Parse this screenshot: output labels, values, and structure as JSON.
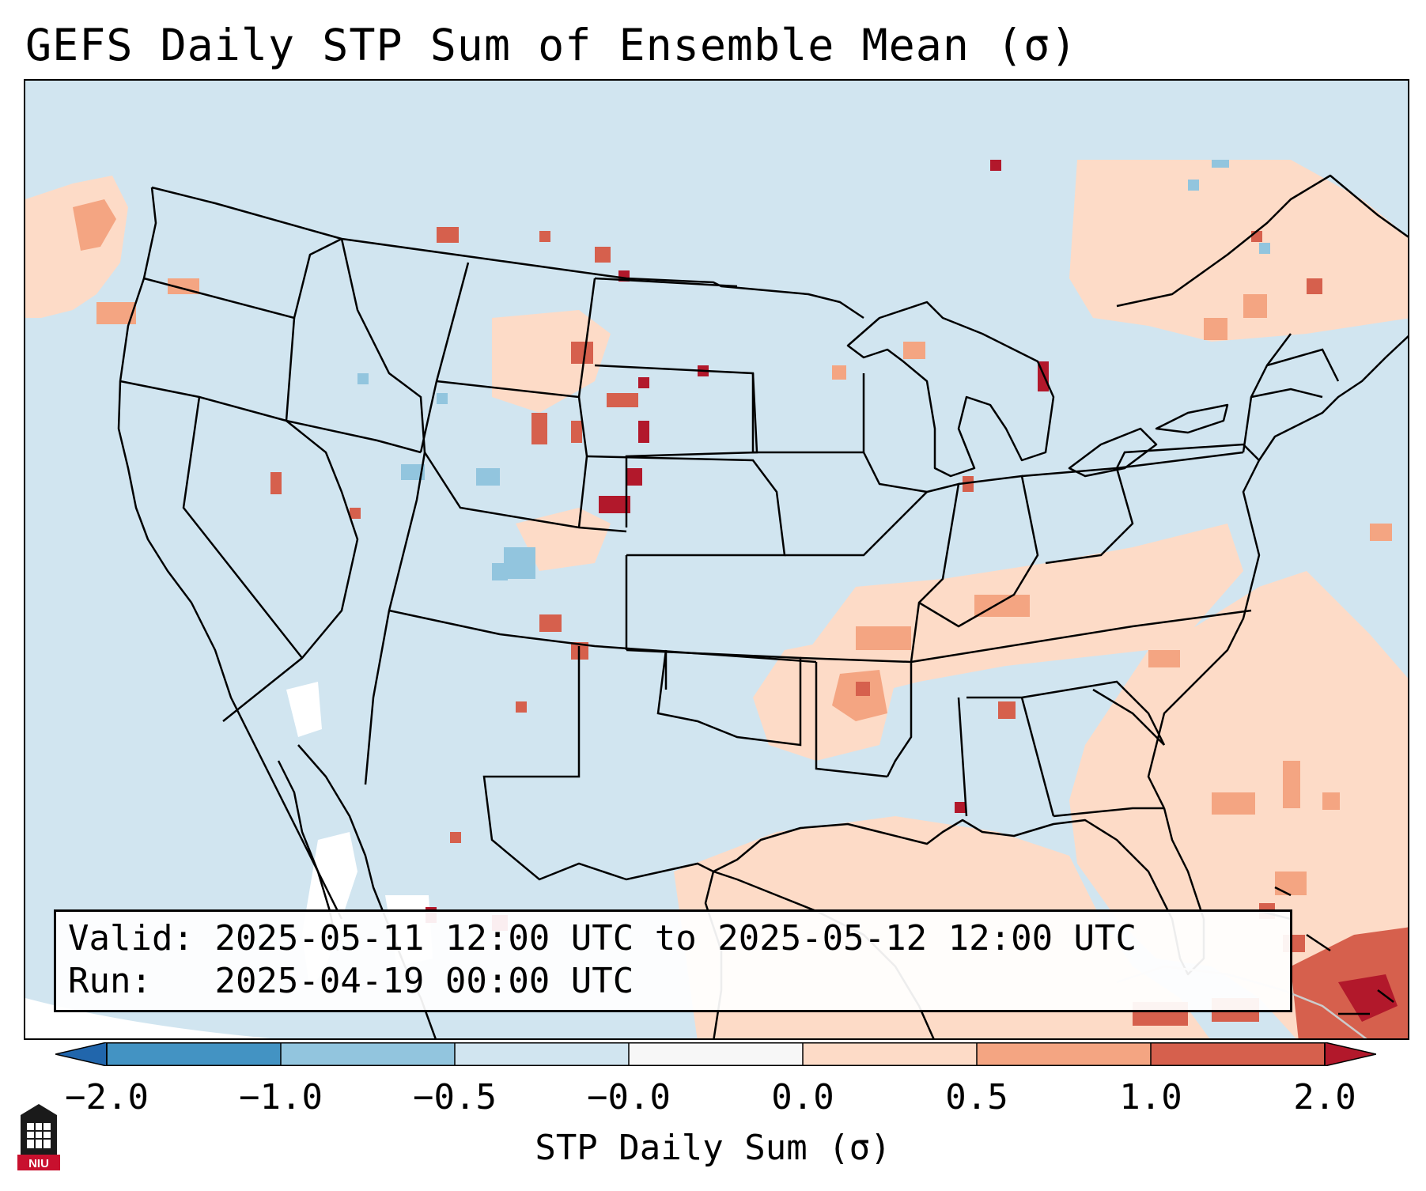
{
  "title": "GEFS Daily STP Sum of Ensemble Mean (σ)",
  "info": {
    "valid_label": "Valid:",
    "valid_text": "2025-05-11 12:00 UTC to 2025-05-12 12:00 UTC",
    "run_label": "Run:",
    "run_text": "2025-04-19 00:00 UTC"
  },
  "colorbar": {
    "label": "STP Daily Sum (σ)",
    "ticks": [
      "−2.0",
      "−1.0",
      "−0.5",
      "−0.0",
      "0.0",
      "0.5",
      "1.0",
      "2.0"
    ],
    "bins": [
      {
        "from": -2.0,
        "to": -1.0,
        "color": "#4393c3"
      },
      {
        "from": -1.0,
        "to": -0.5,
        "color": "#92c5de"
      },
      {
        "from": -0.5,
        "to": -0.0,
        "color": "#d1e5f0"
      },
      {
        "from": -0.0,
        "to": 0.0,
        "color": "#f7f7f7"
      },
      {
        "from": 0.0,
        "to": 0.5,
        "color": "#fddbc7"
      },
      {
        "from": 0.5,
        "to": 1.0,
        "color": "#f4a582"
      },
      {
        "from": 1.0,
        "to": 2.0,
        "color": "#d6604d"
      }
    ],
    "extend_low_color": "#2166ac",
    "extend_high_color": "#b2182b"
  },
  "colors": {
    "neg_weak": "#d1e5f0",
    "neg_mid": "#92c5de",
    "neutral": "#f7f7f7",
    "pos_weak": "#fddbc7",
    "pos_mid": "#f4a582",
    "pos_high": "#d6604d",
    "pos_max": "#b2182b"
  },
  "logo": {
    "text": "NIU",
    "icon": "university-tower-icon"
  }
}
